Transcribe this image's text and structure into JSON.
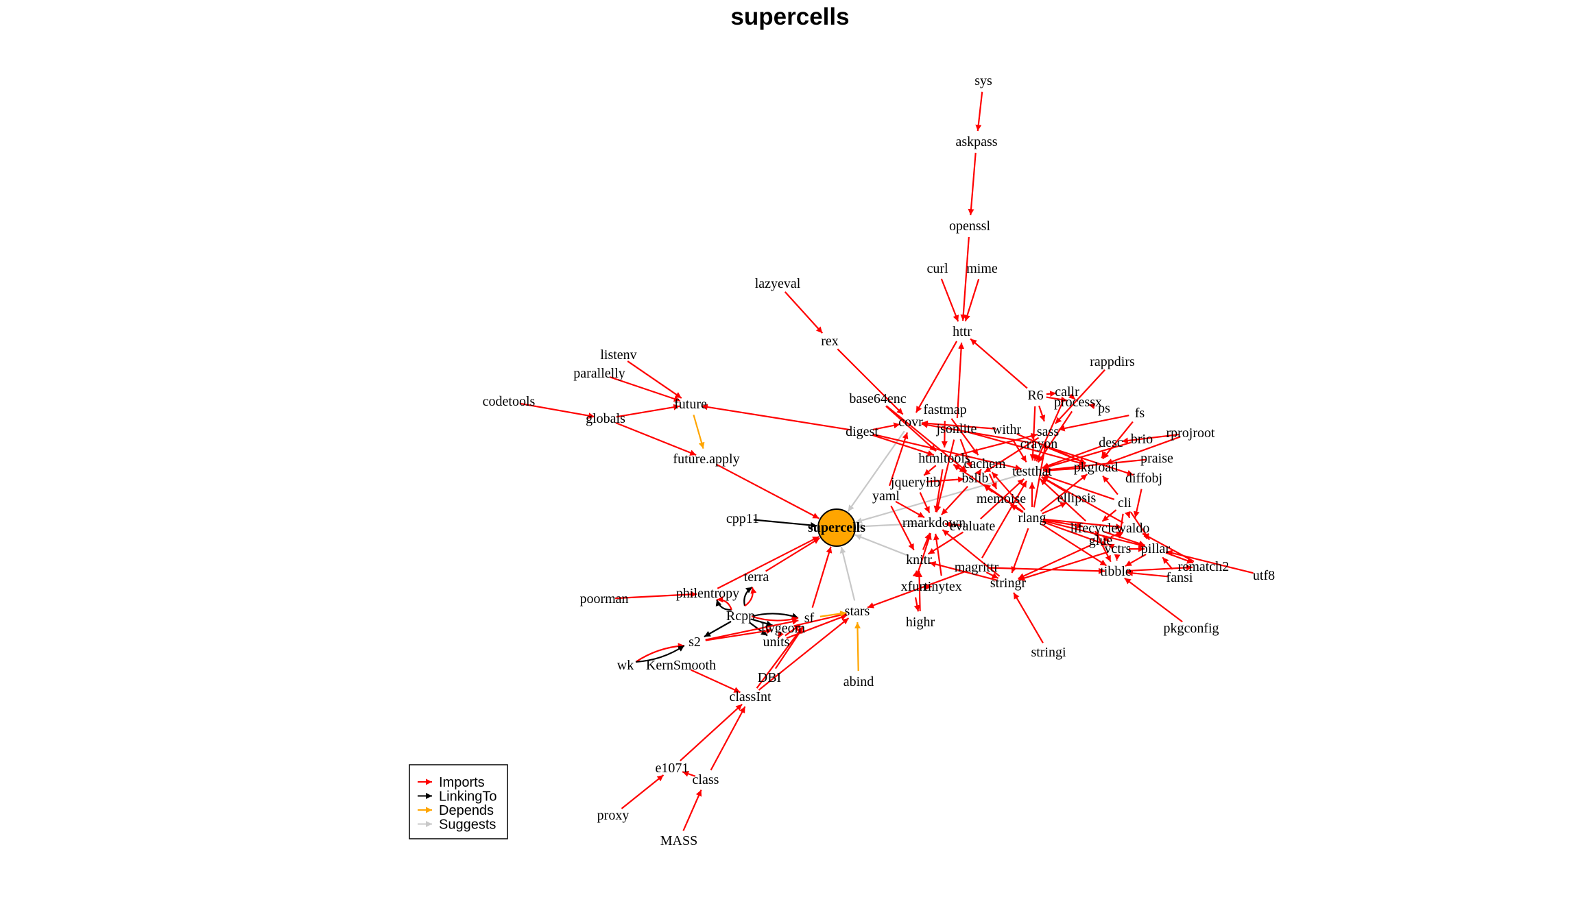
{
  "title": "supercells",
  "colors": {
    "Imports": "#ff0000",
    "LinkingTo": "#000000",
    "Depends": "#ffa500",
    "Suggests": "#c8c8c8",
    "center_fill": "#ffa500"
  },
  "legend": {
    "items": [
      {
        "label": "Imports",
        "type": "Imports"
      },
      {
        "label": "LinkingTo",
        "type": "LinkingTo"
      },
      {
        "label": "Depends",
        "type": "Depends"
      },
      {
        "label": "Suggests",
        "type": "Suggests"
      }
    ]
  },
  "center": "supercells",
  "nodes": [
    "supercells",
    "sys",
    "askpass",
    "openssl",
    "curl",
    "mime",
    "httr",
    "lazyeval",
    "rex",
    "listenv",
    "parallelly",
    "future",
    "codetools",
    "globals",
    "future.apply",
    "base64enc",
    "fastmap",
    "digest",
    "covr",
    "jsonlite",
    "withr",
    "R6",
    "callr",
    "processx",
    "ps",
    "rappdirs",
    "fs",
    "sass",
    "crayon",
    "desc",
    "brio",
    "rprojroot",
    "htmltools",
    "cachem",
    "bslib",
    "testthat",
    "pkgload",
    "praise",
    "diffobj",
    "jquerylib",
    "yaml",
    "memoise",
    "ellipsis",
    "cli",
    "cpp11",
    "rmarkdown",
    "evaluate",
    "rlang",
    "lifecycle",
    "waldo",
    "glue",
    "vctrs",
    "pillar",
    "knitr",
    "magrittr",
    "rematch2",
    "fansi",
    "utf8",
    "xfun",
    "tinytex",
    "stringr",
    "tibble",
    "highr",
    "stringi",
    "pkgconfig",
    "terra",
    "philentropy",
    "poorman",
    "Rcpp",
    "sf",
    "lwgeom",
    "stars",
    "units",
    "s2",
    "wk",
    "KernSmooth",
    "DBI",
    "abind",
    "classInt",
    "e1071",
    "class",
    "proxy",
    "MASS"
  ],
  "edges": [
    {
      "from": "sys",
      "to": "askpass",
      "type": "Imports"
    },
    {
      "from": "askpass",
      "to": "openssl",
      "type": "Imports"
    },
    {
      "from": "openssl",
      "to": "httr",
      "type": "Imports"
    },
    {
      "from": "curl",
      "to": "httr",
      "type": "Imports"
    },
    {
      "from": "mime",
      "to": "httr",
      "type": "Imports"
    },
    {
      "from": "R6",
      "to": "httr",
      "type": "Imports"
    },
    {
      "from": "jsonlite",
      "to": "httr",
      "type": "Imports"
    },
    {
      "from": "httr",
      "to": "covr",
      "type": "Imports"
    },
    {
      "from": "lazyeval",
      "to": "rex",
      "type": "Imports"
    },
    {
      "from": "rex",
      "to": "covr",
      "type": "Imports"
    },
    {
      "from": "listenv",
      "to": "future",
      "type": "Imports"
    },
    {
      "from": "parallelly",
      "to": "future",
      "type": "Imports"
    },
    {
      "from": "codetools",
      "to": "globals",
      "type": "Imports"
    },
    {
      "from": "globals",
      "to": "future",
      "type": "Imports"
    },
    {
      "from": "globals",
      "to": "future.apply",
      "type": "Imports"
    },
    {
      "from": "future",
      "to": "future.apply",
      "type": "Depends"
    },
    {
      "from": "digest",
      "to": "future",
      "type": "Imports"
    },
    {
      "from": "future.apply",
      "to": "supercells",
      "type": "Imports"
    },
    {
      "from": "cpp11",
      "to": "supercells",
      "type": "LinkingTo"
    },
    {
      "from": "covr",
      "to": "supercells",
      "type": "Suggests"
    },
    {
      "from": "testthat",
      "to": "supercells",
      "type": "Suggests"
    },
    {
      "from": "rmarkdown",
      "to": "supercells",
      "type": "Suggests"
    },
    {
      "from": "knitr",
      "to": "supercells",
      "type": "Suggests"
    },
    {
      "from": "stars",
      "to": "supercells",
      "type": "Suggests"
    },
    {
      "from": "terra",
      "to": "supercells",
      "type": "Imports"
    },
    {
      "from": "philentropy",
      "to": "supercells",
      "type": "Imports"
    },
    {
      "from": "sf",
      "to": "supercells",
      "type": "Imports"
    },
    {
      "from": "digest",
      "to": "covr",
      "type": "Imports"
    },
    {
      "from": "withr",
      "to": "covr",
      "type": "Imports"
    },
    {
      "from": "crayon",
      "to": "covr",
      "type": "Imports"
    },
    {
      "from": "yaml",
      "to": "covr",
      "type": "Imports"
    },
    {
      "from": "digest",
      "to": "testthat",
      "type": "Imports"
    },
    {
      "from": "R6",
      "to": "testthat",
      "type": "Imports"
    },
    {
      "from": "callr",
      "to": "testthat",
      "type": "Imports"
    },
    {
      "from": "processx",
      "to": "testthat",
      "type": "Imports"
    },
    {
      "from": "ps",
      "to": "processx",
      "type": "Imports"
    },
    {
      "from": "R6",
      "to": "processx",
      "type": "Imports"
    },
    {
      "from": "processx",
      "to": "callr",
      "type": "Imports"
    },
    {
      "from": "R6",
      "to": "callr",
      "type": "Imports"
    },
    {
      "from": "rappdirs",
      "to": "sass",
      "type": "Imports"
    },
    {
      "from": "fs",
      "to": "sass",
      "type": "Imports"
    },
    {
      "from": "R6",
      "to": "sass",
      "type": "Imports"
    },
    {
      "from": "rprojroot",
      "to": "desc",
      "type": "Imports"
    },
    {
      "from": "rprojroot",
      "to": "pkgload",
      "type": "Imports"
    },
    {
      "from": "desc",
      "to": "pkgload",
      "type": "Imports"
    },
    {
      "from": "desc",
      "to": "testthat",
      "type": "Imports"
    },
    {
      "from": "brio",
      "to": "testthat",
      "type": "Imports"
    },
    {
      "from": "praise",
      "to": "testthat",
      "type": "Imports"
    },
    {
      "from": "diffobj",
      "to": "waldo",
      "type": "Imports"
    },
    {
      "from": "pkgload",
      "to": "testthat",
      "type": "Imports"
    },
    {
      "from": "withr",
      "to": "testthat",
      "type": "Imports"
    },
    {
      "from": "crayon",
      "to": "testthat",
      "type": "Imports"
    },
    {
      "from": "crayon",
      "to": "diffobj",
      "type": "Imports"
    },
    {
      "from": "ellipsis",
      "to": "testthat",
      "type": "Imports"
    },
    {
      "from": "cli",
      "to": "testthat",
      "type": "Imports"
    },
    {
      "from": "cli",
      "to": "pkgload",
      "type": "Imports"
    },
    {
      "from": "rlang",
      "to": "testthat",
      "type": "Imports"
    },
    {
      "from": "rlang",
      "to": "ellipsis",
      "type": "Imports"
    },
    {
      "from": "rlang",
      "to": "lifecycle",
      "type": "Imports"
    },
    {
      "from": "rlang",
      "to": "vctrs",
      "type": "Imports"
    },
    {
      "from": "rlang",
      "to": "pillar",
      "type": "Imports"
    },
    {
      "from": "rlang",
      "to": "tibble",
      "type": "Imports"
    },
    {
      "from": "rlang",
      "to": "waldo",
      "type": "Imports"
    },
    {
      "from": "rlang",
      "to": "sass",
      "type": "Imports"
    },
    {
      "from": "rlang",
      "to": "htmltools",
      "type": "Imports"
    },
    {
      "from": "rlang",
      "to": "cachem",
      "type": "Imports"
    },
    {
      "from": "rlang",
      "to": "memoise",
      "type": "Imports"
    },
    {
      "from": "rlang",
      "to": "bslib",
      "type": "Imports"
    },
    {
      "from": "rlang",
      "to": "pkgload",
      "type": "Imports"
    },
    {
      "from": "rlang",
      "to": "stringr",
      "type": "Imports"
    },
    {
      "from": "waldo",
      "to": "testthat",
      "type": "Imports"
    },
    {
      "from": "lifecycle",
      "to": "testthat",
      "type": "Imports"
    },
    {
      "from": "lifecycle",
      "to": "vctrs",
      "type": "Imports"
    },
    {
      "from": "lifecycle",
      "to": "pillar",
      "type": "Imports"
    },
    {
      "from": "lifecycle",
      "to": "tibble",
      "type": "Imports"
    },
    {
      "from": "glue",
      "to": "lifecycle",
      "type": "Imports"
    },
    {
      "from": "glue",
      "to": "vctrs",
      "type": "Imports"
    },
    {
      "from": "glue",
      "to": "waldo",
      "type": "Imports"
    },
    {
      "from": "glue",
      "to": "stringr",
      "type": "Imports"
    },
    {
      "from": "vctrs",
      "to": "pillar",
      "type": "Imports"
    },
    {
      "from": "vctrs",
      "to": "tibble",
      "type": "Imports"
    },
    {
      "from": "vctrs",
      "to": "stringr",
      "type": "Imports"
    },
    {
      "from": "cli",
      "to": "pillar",
      "type": "Imports"
    },
    {
      "from": "cli",
      "to": "lifecycle",
      "type": "Imports"
    },
    {
      "from": "cli",
      "to": "vctrs",
      "type": "Imports"
    },
    {
      "from": "cli",
      "to": "waldo",
      "type": "Imports"
    },
    {
      "from": "fansi",
      "to": "pillar",
      "type": "Imports"
    },
    {
      "from": "fansi",
      "to": "tibble",
      "type": "Imports"
    },
    {
      "from": "utf8",
      "to": "pillar",
      "type": "Imports"
    },
    {
      "from": "pillar",
      "to": "tibble",
      "type": "Imports"
    },
    {
      "from": "pillar",
      "to": "rematch2",
      "type": "Imports"
    },
    {
      "from": "tibble",
      "to": "rematch2",
      "type": "Imports"
    },
    {
      "from": "rematch2",
      "to": "waldo",
      "type": "Imports"
    },
    {
      "from": "pkgconfig",
      "to": "tibble",
      "type": "Imports"
    },
    {
      "from": "magrittr",
      "to": "tibble",
      "type": "Imports"
    },
    {
      "from": "magrittr",
      "to": "stringr",
      "type": "Imports"
    },
    {
      "from": "magrittr",
      "to": "testthat",
      "type": "Imports"
    },
    {
      "from": "stringi",
      "to": "stringr",
      "type": "Imports"
    },
    {
      "from": "stringr",
      "to": "rmarkdown",
      "type": "Imports"
    },
    {
      "from": "fastmap",
      "to": "cachem",
      "type": "Imports"
    },
    {
      "from": "fastmap",
      "to": "htmltools",
      "type": "Imports"
    },
    {
      "from": "cachem",
      "to": "memoise",
      "type": "Imports"
    },
    {
      "from": "cachem",
      "to": "bslib",
      "type": "Imports"
    },
    {
      "from": "memoise",
      "to": "bslib",
      "type": "Imports"
    },
    {
      "from": "base64enc",
      "to": "htmltools",
      "type": "Imports"
    },
    {
      "from": "base64enc",
      "to": "bslib",
      "type": "Imports"
    },
    {
      "from": "digest",
      "to": "htmltools",
      "type": "Imports"
    },
    {
      "from": "htmltools",
      "to": "jquerylib",
      "type": "Imports"
    },
    {
      "from": "htmltools",
      "to": "bslib",
      "type": "Imports"
    },
    {
      "from": "htmltools",
      "to": "rmarkdown",
      "type": "Imports"
    },
    {
      "from": "htmltools",
      "to": "sass",
      "type": "Imports"
    },
    {
      "from": "jquerylib",
      "to": "bslib",
      "type": "Imports"
    },
    {
      "from": "jquerylib",
      "to": "rmarkdown",
      "type": "Imports"
    },
    {
      "from": "jsonlite",
      "to": "bslib",
      "type": "Imports"
    },
    {
      "from": "jsonlite",
      "to": "rmarkdown",
      "type": "Imports"
    },
    {
      "from": "jsonlite",
      "to": "pkgload",
      "type": "Imports"
    },
    {
      "from": "sass",
      "to": "bslib",
      "type": "Imports"
    },
    {
      "from": "bslib",
      "to": "rmarkdown",
      "type": "Imports"
    },
    {
      "from": "yaml",
      "to": "rmarkdown",
      "type": "Imports"
    },
    {
      "from": "yaml",
      "to": "knitr",
      "type": "Imports"
    },
    {
      "from": "evaluate",
      "to": "rmarkdown",
      "type": "Imports"
    },
    {
      "from": "evaluate",
      "to": "knitr",
      "type": "Imports"
    },
    {
      "from": "evaluate",
      "to": "testthat",
      "type": "Imports"
    },
    {
      "from": "knitr",
      "to": "rmarkdown",
      "type": "Imports"
    },
    {
      "from": "xfun",
      "to": "knitr",
      "type": "Imports"
    },
    {
      "from": "xfun",
      "to": "rmarkdown",
      "type": "Imports"
    },
    {
      "from": "xfun",
      "to": "tinytex",
      "type": "Imports"
    },
    {
      "from": "xfun",
      "to": "highr",
      "type": "Imports"
    },
    {
      "from": "tinytex",
      "to": "rmarkdown",
      "type": "Imports"
    },
    {
      "from": "highr",
      "to": "knitr",
      "type": "Imports"
    },
    {
      "from": "stringr",
      "to": "knitr",
      "type": "Imports"
    },
    {
      "from": "fs",
      "to": "pkgload",
      "type": "Imports"
    },
    {
      "from": "withr",
      "to": "pkgload",
      "type": "Imports"
    },
    {
      "from": "crayon",
      "to": "pkgload",
      "type": "Imports"
    },
    {
      "from": "poorman",
      "to": "philentropy",
      "type": "Imports"
    },
    {
      "from": "Rcpp",
      "to": "philentropy",
      "type": "LinkingTo"
    },
    {
      "from": "Rcpp",
      "to": "terra",
      "type": "LinkingTo"
    },
    {
      "from": "Rcpp",
      "to": "sf",
      "type": "LinkingTo"
    },
    {
      "from": "Rcpp",
      "to": "lwgeom",
      "type": "LinkingTo"
    },
    {
      "from": "Rcpp",
      "to": "s2",
      "type": "LinkingTo"
    },
    {
      "from": "Rcpp",
      "to": "units",
      "type": "LinkingTo"
    },
    {
      "from": "Rcpp",
      "to": "terra",
      "type": "Imports"
    },
    {
      "from": "Rcpp",
      "to": "sf",
      "type": "Imports"
    },
    {
      "from": "Rcpp",
      "to": "philentropy",
      "type": "Imports"
    },
    {
      "from": "lwgeom",
      "to": "stars",
      "type": "Imports"
    },
    {
      "from": "units",
      "to": "sf",
      "type": "Imports"
    },
    {
      "from": "units",
      "to": "stars",
      "type": "Imports"
    },
    {
      "from": "units",
      "to": "lwgeom",
      "type": "Imports"
    },
    {
      "from": "s2",
      "to": "sf",
      "type": "Imports"
    },
    {
      "from": "s2",
      "to": "lwgeom",
      "type": "Imports"
    },
    {
      "from": "wk",
      "to": "s2",
      "type": "Imports"
    },
    {
      "from": "wk",
      "to": "s2",
      "type": "LinkingTo"
    },
    {
      "from": "KernSmooth",
      "to": "classInt",
      "type": "Imports"
    },
    {
      "from": "DBI",
      "to": "sf",
      "type": "Imports"
    },
    {
      "from": "classInt",
      "to": "sf",
      "type": "Imports"
    },
    {
      "from": "classInt",
      "to": "stars",
      "type": "Imports"
    },
    {
      "from": "sf",
      "to": "stars",
      "type": "Depends"
    },
    {
      "from": "abind",
      "to": "stars",
      "type": "Depends"
    },
    {
      "from": "magrittr",
      "to": "stars",
      "type": "Imports"
    },
    {
      "from": "e1071",
      "to": "classInt",
      "type": "Imports"
    },
    {
      "from": "class",
      "to": "classInt",
      "type": "Imports"
    },
    {
      "from": "class",
      "to": "e1071",
      "type": "Imports"
    },
    {
      "from": "proxy",
      "to": "e1071",
      "type": "Imports"
    },
    {
      "from": "MASS",
      "to": "class",
      "type": "Imports"
    }
  ]
}
